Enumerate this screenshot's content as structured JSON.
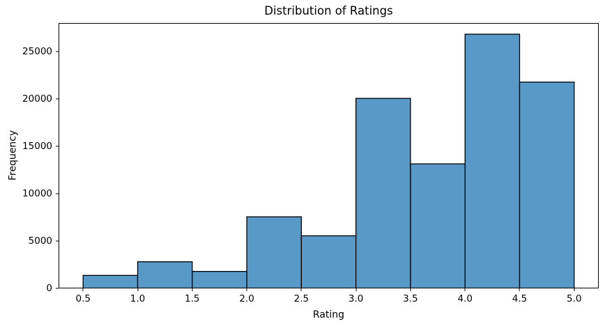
{
  "chart_data": {
    "type": "bar",
    "subtype": "histogram",
    "title": "Distribution of Ratings",
    "xlabel": "Rating",
    "ylabel": "Frequency",
    "bin_edges": [
      0.5,
      1.0,
      1.5,
      2.0,
      2.5,
      3.0,
      3.5,
      4.0,
      4.5,
      5.0
    ],
    "values": [
      1370,
      2811,
      1791,
      7551,
      5550,
      20047,
      13136,
      26818,
      21762
    ],
    "xlim": [
      0.275,
      5.225
    ],
    "ylim": [
      0,
      28000
    ],
    "xtick_values": [
      0.5,
      1.0,
      1.5,
      2.0,
      2.5,
      3.0,
      3.5,
      4.0,
      4.5,
      5.0
    ],
    "xtick_labels": [
      "0.5",
      "1.0",
      "1.5",
      "2.0",
      "2.5",
      "3.0",
      "3.5",
      "4.0",
      "4.5",
      "5.0"
    ],
    "ytick_values": [
      0,
      5000,
      10000,
      15000,
      20000,
      25000
    ],
    "ytick_labels": [
      "0",
      "5000",
      "10000",
      "15000",
      "20000",
      "25000"
    ],
    "grid": false,
    "legend": false,
    "colors": {
      "bar_fill": "#5899c8",
      "bar_edge": "#000000",
      "spine": "#000000",
      "tick": "#000000",
      "text": "#000000",
      "background": "#ffffff"
    }
  }
}
